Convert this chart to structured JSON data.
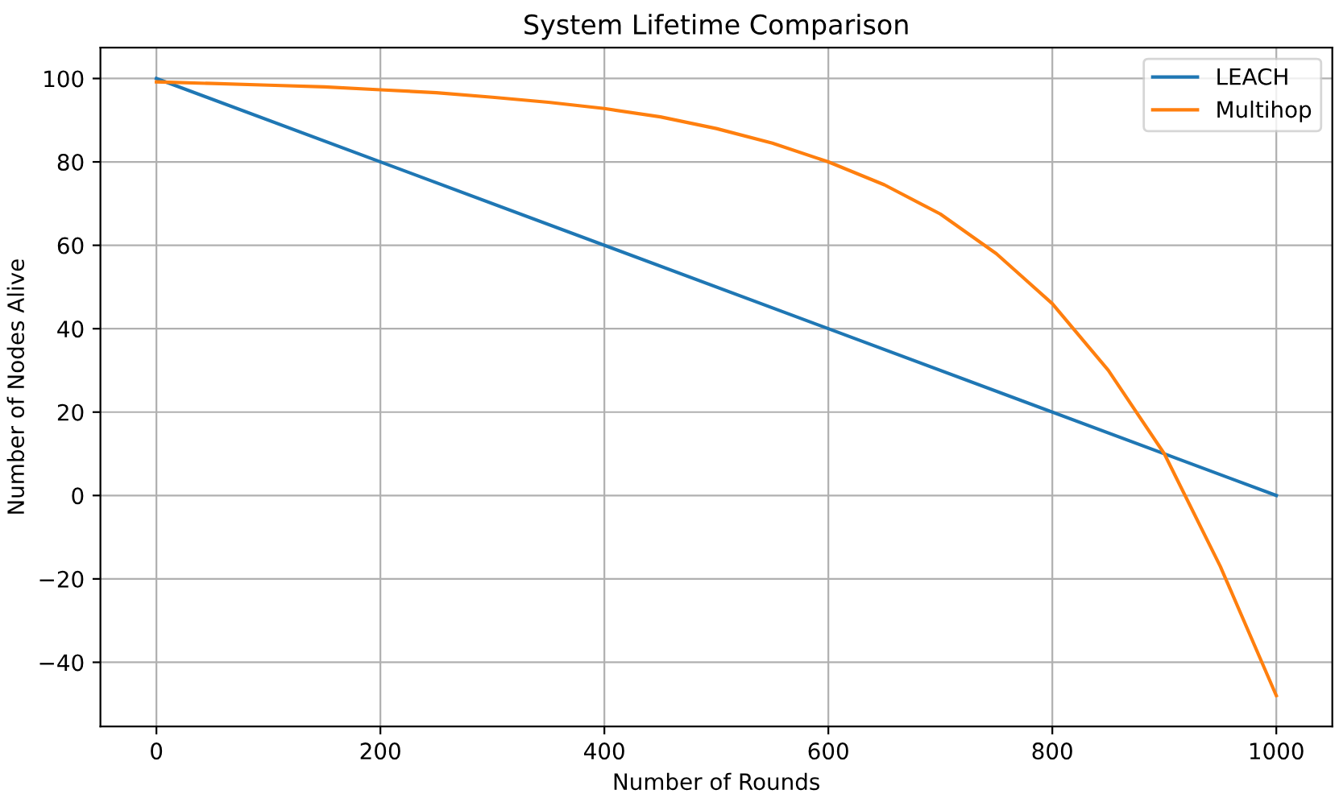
{
  "chart_data": {
    "type": "line",
    "title": "System Lifetime Comparison",
    "xlabel": "Number of Rounds",
    "ylabel": "Number of Nodes Alive",
    "xlim": [
      -50,
      1050
    ],
    "ylim": [
      -55.4,
      107.4
    ],
    "xticks": [
      0,
      200,
      400,
      600,
      800,
      1000
    ],
    "yticks": [
      -40,
      -20,
      0,
      20,
      40,
      60,
      80,
      100
    ],
    "grid": true,
    "legend": "top right",
    "series": [
      {
        "name": "LEACH",
        "color": "#1f77b4",
        "x": [
          0,
          1000
        ],
        "values": [
          100,
          0
        ]
      },
      {
        "name": "Multihop",
        "color": "#ff7f0e",
        "x": [
          0,
          50,
          100,
          150,
          200,
          250,
          300,
          350,
          400,
          450,
          500,
          550,
          600,
          650,
          700,
          750,
          800,
          850,
          900,
          950,
          1000
        ],
        "values": [
          99.2,
          98.8,
          98.4,
          98,
          97.3,
          96.6,
          95.5,
          94.3,
          92.8,
          90.8,
          88,
          84.5,
          80,
          74.5,
          67.5,
          58,
          46,
          30,
          10,
          -17,
          -48
        ]
      }
    ]
  }
}
